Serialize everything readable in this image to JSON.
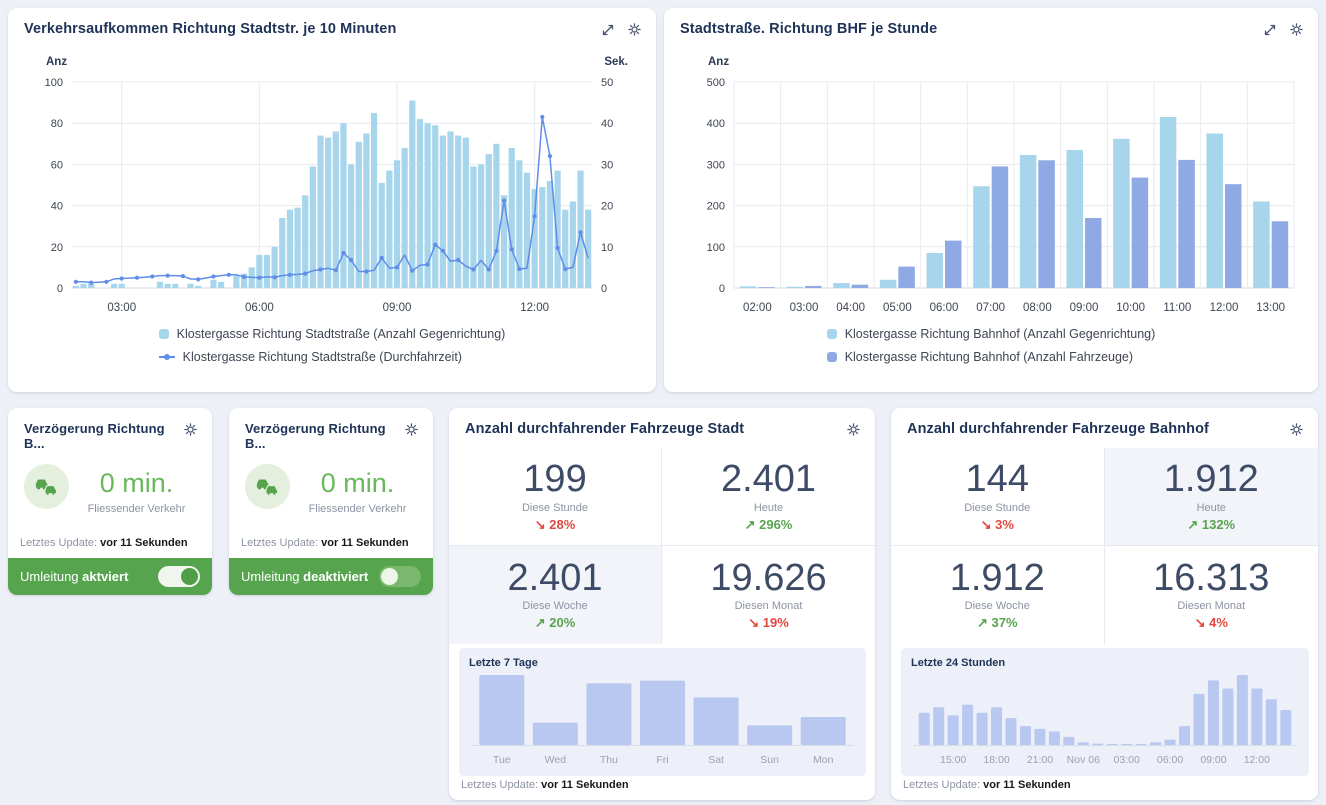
{
  "page": {
    "background": "#edf0f7"
  },
  "icons": {
    "gear": "⚙",
    "expand": "⤢",
    "cars": "🚗",
    "arrow_up": "↗",
    "arrow_down": "↘"
  },
  "panels": {
    "traffic10": {
      "title": "Verkehrsaufkommen Richtung Stadtstr. je 10 Minuten"
    },
    "bhf": {
      "title": "Stadtstraße. Richtung BHF je Stunde"
    },
    "delay1": {
      "title": "Verzögerung Richtung B...",
      "value": "0 min.",
      "caption": "Fliessender Verkehr",
      "update_label": "Letztes Update:",
      "update_value": "vor 11 Sekunden",
      "toggle_prefix": "Umleitung",
      "toggle_state": "aktviert",
      "toggle_on": true
    },
    "delay2": {
      "title": "Verzögerung Richtung B...",
      "value": "0 min.",
      "caption": "Fliessender Verkehr",
      "update_label": "Letztes Update:",
      "update_value": "vor 11 Sekunden",
      "toggle_prefix": "Umleitung",
      "toggle_state": "deaktiviert",
      "toggle_on": false
    },
    "stadt": {
      "title": "Anzahl durchfahrender Fahrzeuge Stadt",
      "stats": [
        {
          "value": "199",
          "label": "Diese Stunde",
          "change": "↘ 28%",
          "dir": "down",
          "highlight": false
        },
        {
          "value": "2.401",
          "label": "Heute",
          "change": "↗ 296%",
          "dir": "up",
          "highlight": false
        },
        {
          "value": "2.401",
          "label": "Diese Woche",
          "change": "↗ 20%",
          "dir": "up",
          "highlight": true
        },
        {
          "value": "19.626",
          "label": "Diesen Monat",
          "change": "↘ 19%",
          "dir": "down",
          "highlight": false
        }
      ],
      "update_label": "Letztes Update:",
      "update_value": "vor 11 Sekunden"
    },
    "bahnhof": {
      "title": "Anzahl durchfahrender Fahrzeuge Bahnhof",
      "stats": [
        {
          "value": "144",
          "label": "Diese Stunde",
          "change": "↘ 3%",
          "dir": "down",
          "highlight": false
        },
        {
          "value": "1.912",
          "label": "Heute",
          "change": "↗ 132%",
          "dir": "up",
          "highlight": true
        },
        {
          "value": "1.912",
          "label": "Diese Woche",
          "change": "↗ 37%",
          "dir": "up",
          "highlight": false
        },
        {
          "value": "16.313",
          "label": "Diesen Monat",
          "change": "↘ 4%",
          "dir": "down",
          "highlight": false
        }
      ],
      "update_label": "Letztes Update:",
      "update_value": "vor 11 Sekunden"
    }
  },
  "chart_data": [
    {
      "id": "traffic10",
      "type": "bar+line",
      "title": "Verkehrsaufkommen Richtung Stadtstr. je 10 Minuten",
      "ylabel_left": "Anz",
      "ylabel_right": "Sek.",
      "x_start": "02:00",
      "x_interval_minutes": 10,
      "x_tick_labels": [
        "03:00",
        "06:00",
        "09:00",
        "12:00"
      ],
      "x_tick_indices": [
        6,
        24,
        42,
        60
      ],
      "ylim_left": [
        0,
        100
      ],
      "yticks_left": [
        0,
        20,
        40,
        60,
        80,
        100
      ],
      "ylim_right": [
        0,
        50
      ],
      "yticks_right": [
        0,
        10,
        20,
        30,
        40,
        50
      ],
      "bar_color": "#a7d5eb",
      "line_color": "#5f8de8",
      "grid": true,
      "legend_position": "bottom",
      "legend": [
        {
          "label": "Klostergasse Richtung Stadtstraße (Anzahl Gegenrichtung)",
          "marker": "square",
          "color": "#a7d5eb"
        },
        {
          "label": "Klostergasse Richtung Stadtstraße (Durchfahrzeit)",
          "marker": "line-dot",
          "color": "#5f8de8"
        }
      ],
      "bars": [
        1,
        2,
        2,
        0,
        0,
        2,
        2,
        0,
        0,
        0,
        0,
        3,
        2,
        2,
        0,
        2,
        1,
        0,
        4,
        3,
        0,
        6,
        7,
        10,
        16,
        16,
        20,
        34,
        38,
        39,
        45,
        59,
        74,
        73,
        76,
        80,
        60,
        71,
        75,
        85,
        51,
        57,
        62,
        68,
        91,
        82,
        80,
        79,
        74,
        76,
        74,
        73,
        59,
        60,
        65,
        70,
        45,
        68,
        62,
        56,
        48,
        49,
        52,
        57,
        38,
        42,
        57,
        38
      ],
      "line": [
        1.5,
        1.5,
        1.3,
        1.4,
        1.5,
        2.2,
        2.3,
        2.4,
        2.5,
        2.6,
        2.8,
        3.0,
        3.0,
        3.0,
        2.9,
        2.2,
        2.1,
        2.4,
        2.8,
        3.0,
        3.2,
        3.2,
        2.7,
        2.6,
        2.5,
        2.7,
        2.6,
        3.0,
        3.2,
        3.3,
        3.5,
        4.2,
        4.5,
        4.8,
        4.3,
        8.5,
        6.8,
        4.0,
        4.0,
        4.3,
        7.3,
        4.8,
        5.0,
        8.0,
        4.2,
        5.5,
        5.7,
        10.5,
        9.0,
        6.5,
        6.8,
        5.3,
        4.5,
        6.7,
        4.5,
        9.0,
        21.2,
        9.4,
        4.6,
        4.8,
        17.4,
        41.5,
        32.0,
        9.7,
        4.6,
        5.0,
        13.5,
        7.2
      ]
    },
    {
      "id": "bhf",
      "type": "grouped-bar",
      "title": "Stadtstraße. Richtung BHF je Stunde",
      "ylabel": "Anz",
      "categories": [
        "02:00",
        "03:00",
        "04:00",
        "05:00",
        "06:00",
        "07:00",
        "08:00",
        "09:00",
        "10:00",
        "11:00",
        "12:00",
        "13:00"
      ],
      "ylim": [
        0,
        500
      ],
      "yticks": [
        0,
        100,
        200,
        300,
        400,
        500
      ],
      "grid": true,
      "legend_position": "bottom",
      "series": [
        {
          "name": "Klostergasse Richtung Bahnhof (Anzahl Gegenrichtung)",
          "color": "#a7d5eb",
          "values": [
            4,
            3,
            12,
            20,
            85,
            247,
            323,
            335,
            362,
            415,
            375,
            210
          ]
        },
        {
          "name": "Klostergasse Richtung Bahnhof (Anzahl Fahrzeuge)",
          "color": "#8fa9e4",
          "values": [
            2,
            5,
            8,
            52,
            115,
            295,
            310,
            170,
            268,
            311,
            252,
            162
          ]
        }
      ]
    },
    {
      "id": "week",
      "type": "bar",
      "title": "Letzte 7 Tage",
      "categories": [
        "Tue",
        "Wed",
        "Thu",
        "Fri",
        "Sat",
        "Sun",
        "Mon"
      ],
      "values": [
        25,
        8,
        22,
        23,
        17,
        7,
        10
      ],
      "bar_color": "#b9c8f0"
    },
    {
      "id": "day24",
      "type": "bar",
      "title": "Letzte 24 Stunden",
      "values": [
        12,
        14,
        11,
        15,
        12,
        14,
        10,
        7,
        6,
        5,
        3,
        1,
        0.5,
        0.3,
        0.3,
        0.3,
        1,
        2,
        7,
        19,
        24,
        21,
        26,
        21,
        17,
        13
      ],
      "x_tick_indices": [
        2,
        5,
        8,
        11,
        14,
        17,
        20,
        23
      ],
      "x_tick_labels": [
        "15:00",
        "18:00",
        "21:00",
        "Nov 06",
        "03:00",
        "06:00",
        "09:00",
        "12:00"
      ],
      "bar_color": "#b9c8f0"
    }
  ]
}
